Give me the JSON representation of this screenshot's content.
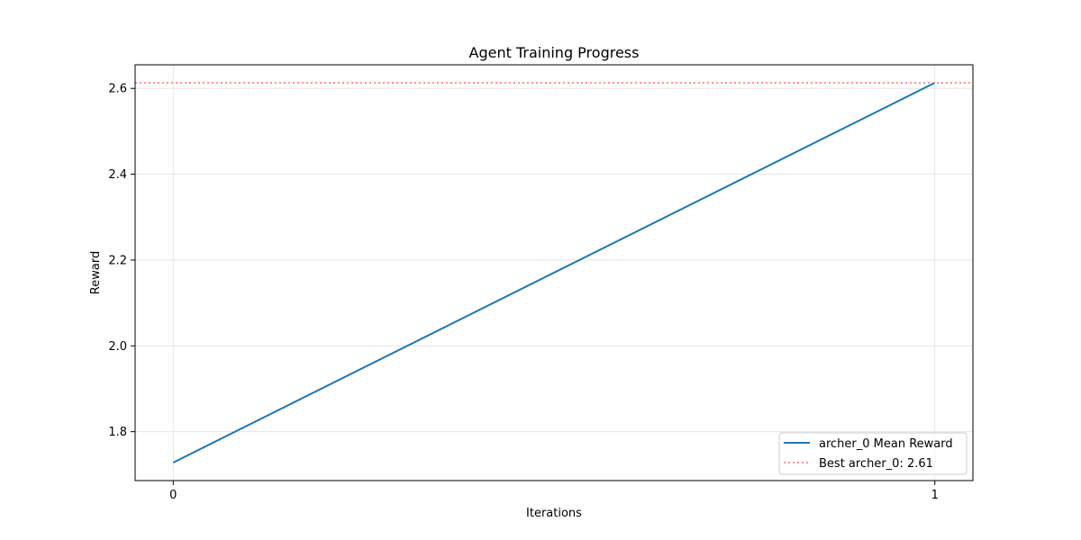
{
  "chart_data": {
    "type": "line",
    "title": "Agent Training Progress",
    "xlabel": "Iterations",
    "ylabel": "Reward",
    "x": [
      0,
      1
    ],
    "xlim": [
      -0.05,
      1.05
    ],
    "ylim": [
      1.686,
      2.655
    ],
    "xticks": [
      0,
      1
    ],
    "xtick_labels": [
      "0",
      "1"
    ],
    "yticks": [
      1.8,
      2.0,
      2.2,
      2.4,
      2.6
    ],
    "ytick_labels": [
      "1.8",
      "2.0",
      "2.2",
      "2.4",
      "2.6"
    ],
    "grid": true,
    "legend_position": "lower-right",
    "series": [
      {
        "name": "archer_0 Mean Reward",
        "values": [
          1.728,
          2.613
        ],
        "color": "#1f77b4",
        "style": "solid"
      }
    ],
    "reference_lines": [
      {
        "name": "Best archer_0: 2.61",
        "y": 2.613,
        "color": "#ff6b6b",
        "style": "dotted"
      }
    ]
  }
}
